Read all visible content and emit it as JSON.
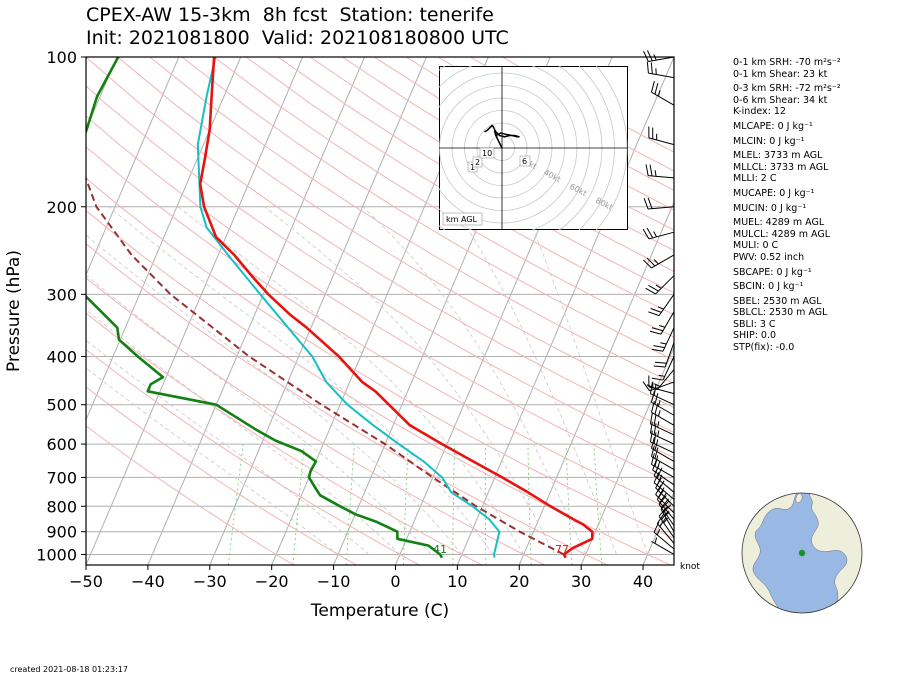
{
  "title_line1": "CPEX-AW 15-3km  8h fcst  Station: tenerife",
  "title_line2": "Init: 2021081800  Valid: 202108180800 UTC",
  "created": "created 2021-08-18 01:23:17",
  "stats": [
    "0-1 km SRH: -70 m²s⁻²",
    "0-1 km Shear: 23 kt",
    "0-3 km SRH: -72 m²s⁻²",
    "0-6 km Shear: 34 kt",
    "K-index: 12",
    "MLCAPE: 0 J kg⁻¹",
    "MLCIN: 0 J kg⁻¹",
    "MLEL: 3733 m AGL",
    "MLLCL: 3733 m AGL",
    "MLLI: 2 C",
    "MUCAPE: 0 J kg⁻¹",
    "MUCIN: 0 J kg⁻¹",
    "MUEL: 4289 m AGL",
    "MULCL: 4289 m AGL",
    "MULI: 0 C",
    "PWV: 0.52 inch",
    "SBCAPE: 0 J kg⁻¹",
    "SBCIN: 0 J kg⁻¹",
    "SBEL: 2530 m AGL",
    "SBLCL: 2530 m AGL",
    "SBLI: 3 C",
    "SHIP: 0.0",
    "STP(fix): -0.0"
  ],
  "hodograph": {
    "speed_rings": [
      "20kt",
      "40kt",
      "60kt",
      "80kt"
    ],
    "height_labels": [
      "1",
      "2",
      "6",
      "10"
    ],
    "units_label": "km AGL"
  },
  "colors": {
    "temperature": "#e8120f",
    "dewpoint": "#128012",
    "parcel": "#9b3030",
    "wetbulb": "#17bfc4",
    "dry_adiabat": "#f4b4b4",
    "isotherm": "#b0b0b0",
    "mixing_ratio": "#7fcf7f",
    "globe_land": "#eeeedd",
    "globe_ocean": "#99b8e4",
    "station_marker": "#1f8f1f"
  },
  "chart_data": {
    "type": "skew-t log-p",
    "xlabel": "Temperature (C)",
    "ylabel": "Pressure (hPa)",
    "xlim": [
      -50,
      45
    ],
    "ylim": [
      1050,
      100
    ],
    "x_ticks": [
      -50,
      -40,
      -30,
      -20,
      -10,
      0,
      10,
      20,
      30,
      40
    ],
    "y_ticks": [
      100,
      200,
      300,
      400,
      500,
      600,
      700,
      800,
      900,
      1000
    ],
    "surface_temperature_label": "77",
    "surface_dewpoint_label": "41",
    "barb_units": "knot",
    "series": [
      {
        "key": "temperature",
        "points": [
          [
            1015,
            27
          ],
          [
            1000,
            26.5
          ],
          [
            970,
            27.5
          ],
          [
            930,
            30
          ],
          [
            900,
            29.5
          ],
          [
            870,
            27.5
          ],
          [
            850,
            25.6
          ],
          [
            800,
            21
          ],
          [
            750,
            16.4
          ],
          [
            700,
            11.2
          ],
          [
            650,
            5.4
          ],
          [
            600,
            -0.8
          ],
          [
            550,
            -7.3
          ],
          [
            500,
            -12.1
          ],
          [
            470,
            -15.2
          ],
          [
            450,
            -18
          ],
          [
            400,
            -23.5
          ],
          [
            370,
            -27.7
          ],
          [
            350,
            -30.7
          ],
          [
            330,
            -34.2
          ],
          [
            300,
            -39.2
          ],
          [
            275,
            -43.2
          ],
          [
            250,
            -47.4
          ],
          [
            230,
            -51.6
          ],
          [
            200,
            -55.6
          ],
          [
            180,
            -57.8
          ],
          [
            160,
            -58.8
          ],
          [
            140,
            -60
          ],
          [
            120,
            -62
          ],
          [
            110,
            -63.1
          ],
          [
            100,
            -64.3
          ]
        ]
      },
      {
        "key": "dewpoint",
        "points": [
          [
            1015,
            7
          ],
          [
            1000,
            6.5
          ],
          [
            960,
            4
          ],
          [
            930,
            -1.5
          ],
          [
            900,
            -2
          ],
          [
            860,
            -6
          ],
          [
            830,
            -10
          ],
          [
            800,
            -13
          ],
          [
            760,
            -17
          ],
          [
            720,
            -19
          ],
          [
            700,
            -20
          ],
          [
            680,
            -20.2
          ],
          [
            650,
            -20
          ],
          [
            620,
            -23
          ],
          [
            590,
            -28
          ],
          [
            560,
            -32
          ],
          [
            500,
            -40
          ],
          [
            470,
            -52
          ],
          [
            455,
            -52
          ],
          [
            440,
            -50.5
          ],
          [
            400,
            -56
          ],
          [
            370,
            -60.2
          ],
          [
            350,
            -61.3
          ],
          [
            300,
            -69
          ],
          [
            270,
            -70.4
          ],
          [
            240,
            -72.6
          ],
          [
            220,
            -73.8
          ],
          [
            200,
            -75.7
          ],
          [
            180,
            -78.8
          ],
          [
            160,
            -79.8
          ],
          [
            140,
            -79.9
          ],
          [
            120,
            -80.5
          ],
          [
            100,
            -79.8
          ]
        ]
      },
      {
        "key": "wetbulb",
        "points": [
          [
            1015,
            15.5
          ],
          [
            1000,
            15.2
          ],
          [
            900,
            14.5
          ],
          [
            850,
            12
          ],
          [
            800,
            8.4
          ],
          [
            750,
            4
          ],
          [
            700,
            1.5
          ],
          [
            650,
            -2.6
          ],
          [
            600,
            -7.8
          ],
          [
            550,
            -13.2
          ],
          [
            500,
            -18.8
          ],
          [
            450,
            -23.8
          ],
          [
            400,
            -27.8
          ],
          [
            350,
            -33.7
          ],
          [
            300,
            -40.5
          ],
          [
            250,
            -48.4
          ],
          [
            220,
            -53.8
          ],
          [
            200,
            -56.2
          ],
          [
            150,
            -60.9
          ],
          [
            120,
            -62.8
          ],
          [
            100,
            -64.1
          ]
        ]
      },
      {
        "key": "parcel",
        "points": [
          [
            1000,
            26.5
          ],
          [
            900,
            17.8
          ],
          [
            800,
            9
          ],
          [
            700,
            0
          ],
          [
            600,
            -10
          ],
          [
            500,
            -23
          ],
          [
            400,
            -38
          ],
          [
            300,
            -55
          ],
          [
            250,
            -64
          ],
          [
            200,
            -73
          ],
          [
            150,
            -81
          ],
          [
            120,
            -85.8
          ],
          [
            100,
            -89.5
          ]
        ]
      }
    ],
    "wind_barbs": [
      {
        "p": 1000,
        "dir": 300,
        "kt": 5
      },
      {
        "p": 975,
        "dir": 310,
        "kt": 15
      },
      {
        "p": 950,
        "dir": 320,
        "kt": 20
      },
      {
        "p": 925,
        "dir": 325,
        "kt": 25
      },
      {
        "p": 900,
        "dir": 330,
        "kt": 25
      },
      {
        "p": 875,
        "dir": 325,
        "kt": 25
      },
      {
        "p": 850,
        "dir": 320,
        "kt": 20
      },
      {
        "p": 825,
        "dir": 315,
        "kt": 20
      },
      {
        "p": 800,
        "dir": 315,
        "kt": 20
      },
      {
        "p": 775,
        "dir": 310,
        "kt": 20
      },
      {
        "p": 750,
        "dir": 310,
        "kt": 20
      },
      {
        "p": 725,
        "dir": 305,
        "kt": 20
      },
      {
        "p": 700,
        "dir": 300,
        "kt": 20
      },
      {
        "p": 675,
        "dir": 300,
        "kt": 20
      },
      {
        "p": 650,
        "dir": 300,
        "kt": 20
      },
      {
        "p": 625,
        "dir": 295,
        "kt": 20
      },
      {
        "p": 600,
        "dir": 295,
        "kt": 25
      },
      {
        "p": 575,
        "dir": 295,
        "kt": 25
      },
      {
        "p": 550,
        "dir": 300,
        "kt": 25
      },
      {
        "p": 525,
        "dir": 300,
        "kt": 25
      },
      {
        "p": 500,
        "dir": 295,
        "kt": 20
      },
      {
        "p": 475,
        "dir": 285,
        "kt": 15
      },
      {
        "p": 450,
        "dir": 250,
        "kt": 10
      },
      {
        "p": 425,
        "dir": 220,
        "kt": 15
      },
      {
        "p": 400,
        "dir": 205,
        "kt": 15
      },
      {
        "p": 375,
        "dir": 200,
        "kt": 20
      },
      {
        "p": 350,
        "dir": 205,
        "kt": 25
      },
      {
        "p": 325,
        "dir": 210,
        "kt": 25
      },
      {
        "p": 300,
        "dir": 215,
        "kt": 25
      },
      {
        "p": 275,
        "dir": 225,
        "kt": 25
      },
      {
        "p": 250,
        "dir": 240,
        "kt": 25
      },
      {
        "p": 225,
        "dir": 255,
        "kt": 25
      },
      {
        "p": 200,
        "dir": 265,
        "kt": 20
      },
      {
        "p": 175,
        "dir": 275,
        "kt": 25
      },
      {
        "p": 150,
        "dir": 285,
        "kt": 25
      },
      {
        "p": 125,
        "dir": 300,
        "kt": 25
      },
      {
        "p": 110,
        "dir": 280,
        "kt": 25
      },
      {
        "p": 100,
        "dir": 260,
        "kt": 25
      }
    ],
    "hodograph_trace": [
      [
        0,
        0
      ],
      [
        -4,
        -8
      ],
      [
        -6,
        -14
      ],
      [
        -5,
        -10
      ],
      [
        -1,
        -12
      ],
      [
        3,
        -11
      ],
      [
        8,
        -10
      ],
      [
        12,
        -9
      ],
      [
        14,
        -9
      ],
      [
        10,
        -10
      ],
      [
        6,
        -10
      ],
      [
        2,
        -9
      ],
      [
        -2,
        -10
      ],
      [
        -5,
        -13
      ],
      [
        -6,
        -15
      ],
      [
        -7,
        -17
      ],
      [
        -8,
        -18
      ],
      [
        -9,
        -17
      ],
      [
        -12,
        -14
      ],
      [
        -14,
        -13
      ]
    ]
  }
}
